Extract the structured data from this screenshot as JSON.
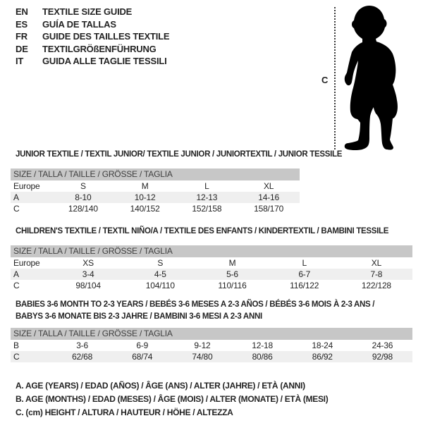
{
  "header": {
    "languages": [
      {
        "code": "EN",
        "title": "TEXTILE SIZE GUIDE"
      },
      {
        "code": "ES",
        "title": "GUÍA DE TALLAS"
      },
      {
        "code": "FR",
        "title": "GUIDE DES TAILLES TEXTILE"
      },
      {
        "code": "DE",
        "title": "TEXTILGRÖßENFÜHRUNG"
      },
      {
        "code": "IT",
        "title": "GUIDA ALLE TAGLIE TESSILI"
      }
    ],
    "figure": {
      "measure_label": "C",
      "figure_name": "toddler-silhouette"
    }
  },
  "sections": [
    {
      "title_lines": [
        "JUNIOR TEXTILE / TEXTIL JUNIOR/ TEXTILE JUNIOR / JUNIORTEXTIL / JUNIOR TESSILE"
      ],
      "size_header": "SIZE / TALLA / TAILLE / GRÖSSE / TAGLIA",
      "table": {
        "rows": [
          [
            "Europe",
            "S",
            "M",
            "L",
            "XL"
          ],
          [
            "A",
            "8-10",
            "10-12",
            "12-13",
            "14-16"
          ],
          [
            "C",
            "128/140",
            "140/152",
            "152/158",
            "158/170"
          ]
        ]
      }
    },
    {
      "title_lines": [
        "CHILDREN'S TEXTILE / TEXTIL NIÑO/A / TEXTILE DES ENFANTS / KINDERTEXTIL / BAMBINI TESSILE"
      ],
      "size_header": "SIZE / TALLA / TAILLE / GRÖSSE / TAGLIA",
      "table": {
        "rows": [
          [
            "Europe",
            "XS",
            "S",
            "M",
            "L",
            "XL"
          ],
          [
            "A",
            "3-4",
            "4-5",
            "5-6",
            "6-7",
            "7-8"
          ],
          [
            "C",
            "98/104",
            "104/110",
            "110/116",
            "116/122",
            "122/128"
          ]
        ]
      }
    },
    {
      "title_lines": [
        "BABIES 3-6 MONTH TO 2-3 YEARS / BEBÉS 3-6 MESES A 2-3 AÑOS / BÉBÉS 3-6 MOIS À 2-3 ANS /",
        "BABYS 3-6 MONATE BIS 2-3 JAHRE / BAMBINI 3-6 MESI A 2-3 ANNI"
      ],
      "size_header": "SIZE / TALLA / TAILLE / GRÖSSE / TAGLIA",
      "table": {
        "rows": [
          [
            "B",
            "3-6",
            "6-9",
            "9-12",
            "12-18",
            "18-24",
            "24-36"
          ],
          [
            "C",
            "62/68",
            "68/74",
            "74/80",
            "80/86",
            "86/92",
            "92/98"
          ]
        ]
      }
    }
  ],
  "notes": [
    "A. AGE (YEARS) / EDAD (AÑOS) / ÂGE (ANS) / ALTER (JAHRE) / ETÀ (ANNI)",
    "B. AGE (MONTHS) / EDAD (MESES) / ÂGE (MOIS) / ALTER (MONATE) / ETÀ (MESI)",
    "C. (cm) HEIGHT / ALTURA / HAUTEUR / HÖHE / ALTEZZA"
  ],
  "colors": {
    "bar_gray": "#c7c7c7",
    "row_shade": "#efefef",
    "silhouette": "#000000"
  }
}
